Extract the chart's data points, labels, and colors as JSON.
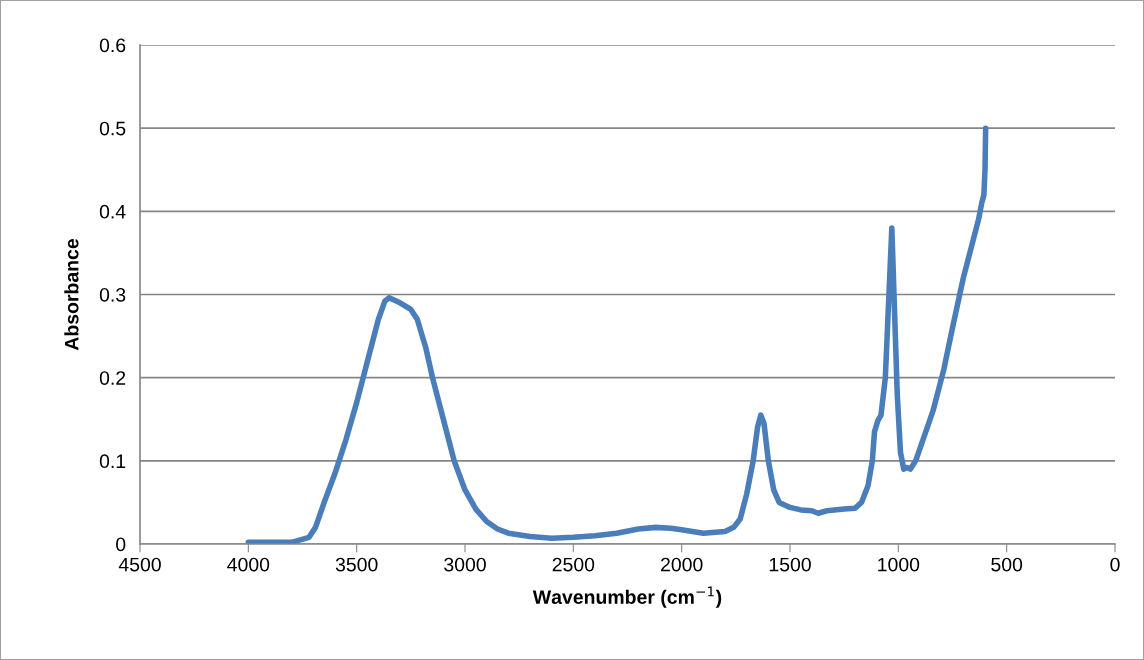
{
  "chart_data": {
    "type": "line",
    "xlabel": "Wavenumber (cm$^{−1}$)",
    "ylabel": "Absorbance",
    "xlim": [
      4500,
      0
    ],
    "xticks": [
      4500,
      4000,
      3500,
      3000,
      2500,
      2000,
      1500,
      1000,
      500,
      0
    ],
    "ylim": [
      0,
      0.6
    ],
    "yticks": [
      0,
      0.1,
      0.2,
      0.3,
      0.4,
      0.5,
      0.6
    ],
    "grid": "y",
    "marker": "none",
    "line_style": "solid",
    "x": [
      4000,
      3900,
      3800,
      3720,
      3690,
      3650,
      3600,
      3550,
      3500,
      3450,
      3400,
      3370,
      3350,
      3300,
      3250,
      3220,
      3180,
      3150,
      3100,
      3050,
      3000,
      2950,
      2900,
      2850,
      2800,
      2700,
      2600,
      2500,
      2400,
      2300,
      2200,
      2120,
      2050,
      2000,
      1900,
      1800,
      1760,
      1730,
      1700,
      1670,
      1650,
      1635,
      1620,
      1600,
      1575,
      1550,
      1500,
      1450,
      1400,
      1370,
      1330,
      1250,
      1200,
      1170,
      1140,
      1120,
      1110,
      1095,
      1080,
      1060,
      1045,
      1030,
      1020,
      1005,
      990,
      975,
      960,
      945,
      920,
      880,
      840,
      790,
      750,
      700,
      660,
      630,
      615,
      605,
      600,
      597
    ],
    "series": [
      {
        "color": "#4a7ebb",
        "values": [
          0.002,
          0.002,
          0.002,
          0.008,
          0.02,
          0.05,
          0.085,
          0.125,
          0.17,
          0.22,
          0.27,
          0.292,
          0.296,
          0.29,
          0.282,
          0.27,
          0.235,
          0.2,
          0.15,
          0.1,
          0.065,
          0.042,
          0.027,
          0.018,
          0.013,
          0.009,
          0.007,
          0.008,
          0.01,
          0.013,
          0.018,
          0.02,
          0.019,
          0.017,
          0.013,
          0.015,
          0.02,
          0.03,
          0.06,
          0.1,
          0.14,
          0.155,
          0.145,
          0.1,
          0.065,
          0.05,
          0.044,
          0.041,
          0.04,
          0.037,
          0.04,
          0.042,
          0.043,
          0.05,
          0.07,
          0.1,
          0.135,
          0.148,
          0.155,
          0.2,
          0.29,
          0.38,
          0.3,
          0.18,
          0.11,
          0.09,
          0.092,
          0.09,
          0.1,
          0.13,
          0.16,
          0.21,
          0.26,
          0.32,
          0.36,
          0.39,
          0.41,
          0.42,
          0.45,
          0.5
        ]
      }
    ]
  }
}
